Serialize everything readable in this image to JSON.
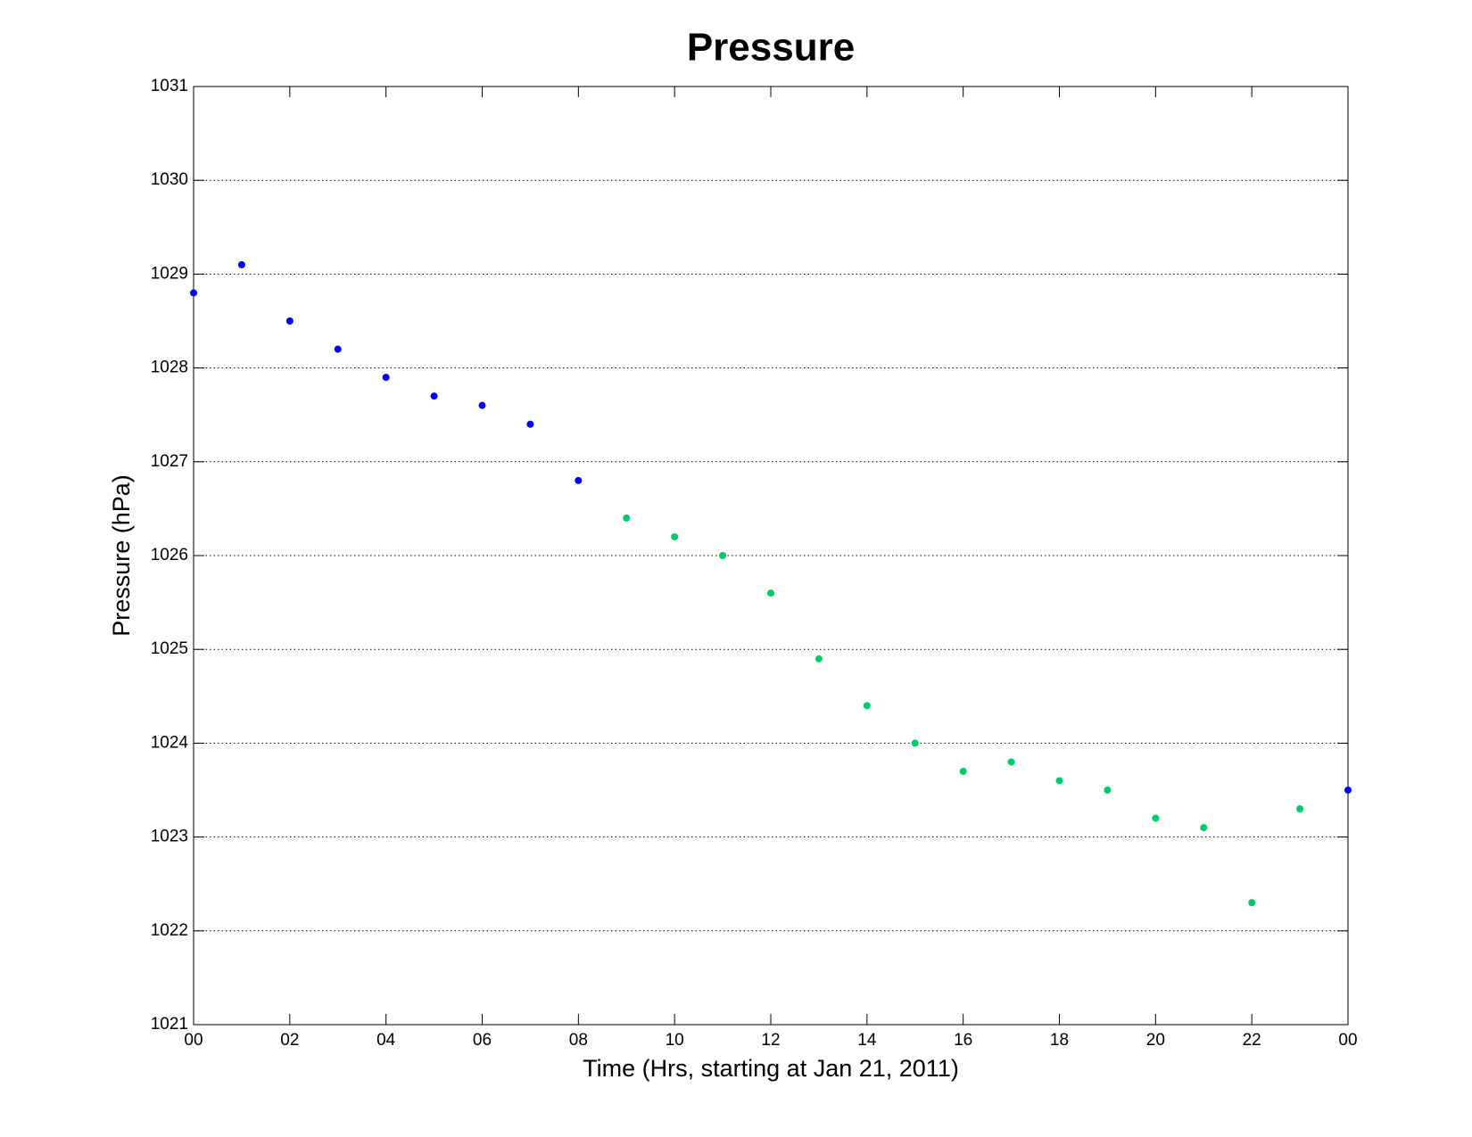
{
  "chart_data": {
    "type": "scatter",
    "title": "Pressure",
    "x_label": "Time (Hrs, starting at Jan 21, 2011)",
    "y_label": "Pressure (hPa)",
    "xlim": [
      0,
      24
    ],
    "xticks": [
      {
        "value": 0,
        "label": "00"
      },
      {
        "value": 2,
        "label": "02"
      },
      {
        "value": 4,
        "label": "04"
      },
      {
        "value": 6,
        "label": "06"
      },
      {
        "value": 8,
        "label": "08"
      },
      10,
      12,
      14,
      16,
      18,
      20,
      22,
      {
        "value": 24,
        "label": "00"
      }
    ],
    "ylim": [
      1021,
      1031
    ],
    "yticks": [
      1021,
      1022,
      1023,
      1024,
      1025,
      1026,
      1027,
      1028,
      1029,
      1030,
      1031
    ],
    "grid": true,
    "series": [
      {
        "color": "#0000ff",
        "x": [
          0,
          1,
          2,
          3,
          4,
          5,
          6,
          7,
          8,
          24
        ],
        "values": [
          1028.8,
          1029.1,
          1028.5,
          1028.2,
          1027.9,
          1027.7,
          1027.6,
          1027.4,
          1026.8,
          1023.5
        ]
      },
      {
        "color": "#00cc66",
        "x": [
          9,
          10,
          11,
          12,
          13,
          14,
          15,
          16,
          17,
          18,
          19,
          20,
          21,
          22,
          23
        ],
        "values": [
          1026.4,
          1026.2,
          1026.0,
          1025.6,
          1024.9,
          1024.4,
          1024.0,
          1023.7,
          1023.8,
          1023.6,
          1023.5,
          1023.2,
          1023.1,
          1022.3,
          1023.3
        ]
      }
    ]
  }
}
